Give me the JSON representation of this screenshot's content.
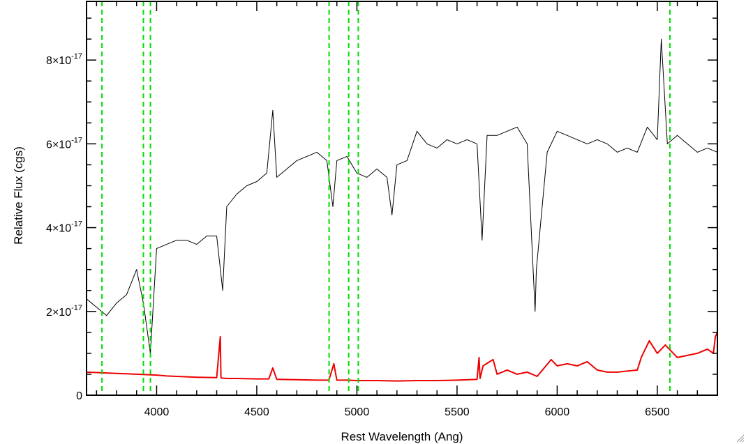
{
  "chart_data": {
    "type": "line",
    "title": "",
    "xlabel": "Rest Wavelength (Ang)",
    "ylabel": "Relative Flux (cgs)",
    "xlim": [
      3650,
      6800
    ],
    "ylim": [
      0,
      9.4e-17
    ],
    "xticks": [
      {
        "value": 4000,
        "label": "4000"
      },
      {
        "value": 4500,
        "label": "4500"
      },
      {
        "value": 5000,
        "label": "5000"
      },
      {
        "value": 5500,
        "label": "5500"
      },
      {
        "value": 6000,
        "label": "6000"
      },
      {
        "value": 6500,
        "label": "6500"
      }
    ],
    "yticks": [
      {
        "value": 0,
        "label": "0",
        "mantissa": "0",
        "exponent": ""
      },
      {
        "value": 2e-17,
        "label": "2×10⁻¹⁷",
        "mantissa": "2×10",
        "exponent": "-17"
      },
      {
        "value": 4e-17,
        "label": "4×10⁻¹⁷",
        "mantissa": "4×10",
        "exponent": "-17"
      },
      {
        "value": 6e-17,
        "label": "6×10⁻¹⁷",
        "mantissa": "6×10",
        "exponent": "-17"
      },
      {
        "value": 8e-17,
        "label": "8×10⁻¹⁷",
        "mantissa": "8×10",
        "exponent": "-17"
      }
    ],
    "grid": false,
    "legend": "none",
    "vlines": {
      "style": "dashed",
      "color": "#00dd00",
      "x": [
        3727,
        3934,
        3969,
        4861,
        4959,
        5007,
        6563
      ]
    },
    "series": [
      {
        "color": "#000000",
        "x": [
          3650,
          3700,
          3750,
          3800,
          3850,
          3900,
          3934,
          3969,
          4000,
          4050,
          4100,
          4150,
          4200,
          4250,
          4300,
          4330,
          4350,
          4400,
          4450,
          4500,
          4550,
          4580,
          4600,
          4650,
          4700,
          4750,
          4800,
          4850,
          4880,
          4900,
          4950,
          5000,
          5050,
          5100,
          5150,
          5175,
          5200,
          5250,
          5300,
          5350,
          5400,
          5450,
          5500,
          5550,
          5600,
          5625,
          5650,
          5700,
          5750,
          5800,
          5850,
          5890,
          5896,
          5950,
          6000,
          6050,
          6100,
          6150,
          6200,
          6250,
          6300,
          6350,
          6400,
          6450,
          6500,
          6520,
          6550,
          6600,
          6650,
          6700,
          6750,
          6800
        ],
        "y": [
          2.3e-17,
          2.1e-17,
          1.9e-17,
          2.2e-17,
          2.4e-17,
          3e-17,
          2.2e-17,
          1e-17,
          3.5e-17,
          3.6e-17,
          3.7e-17,
          3.7e-17,
          3.6e-17,
          3.8e-17,
          3.8e-17,
          2.5e-17,
          4.5e-17,
          4.8e-17,
          5e-17,
          5.1e-17,
          5.3e-17,
          6.8e-17,
          5.2e-17,
          5.4e-17,
          5.6e-17,
          5.7e-17,
          5.8e-17,
          5.6e-17,
          4.5e-17,
          5.6e-17,
          5.7e-17,
          5.3e-17,
          5.2e-17,
          5.4e-17,
          5.2e-17,
          4.3e-17,
          5.5e-17,
          5.6e-17,
          6.3e-17,
          6e-17,
          5.9e-17,
          6.1e-17,
          6e-17,
          6.1e-17,
          6e-17,
          3.7e-17,
          6.2e-17,
          6.2e-17,
          6.3e-17,
          6.4e-17,
          6e-17,
          2e-17,
          3e-17,
          5.8e-17,
          6.3e-17,
          6.2e-17,
          6.1e-17,
          6e-17,
          6.1e-17,
          6e-17,
          5.8e-17,
          5.9e-17,
          5.8e-17,
          6.4e-17,
          6.1e-17,
          8.5e-17,
          6e-17,
          6.2e-17,
          6e-17,
          5.8e-17,
          5.9e-17,
          5.8e-17
        ]
      },
      {
        "color": "#ee0000",
        "x": [
          3650,
          3700,
          3750,
          3800,
          3850,
          3900,
          3950,
          4000,
          4050,
          4100,
          4200,
          4300,
          4318,
          4321,
          4325,
          4350,
          4400,
          4500,
          4520,
          4560,
          4580,
          4600,
          4700,
          4800,
          4860,
          4885,
          4900,
          4950,
          5000,
          5050,
          5100,
          5200,
          5300,
          5400,
          5500,
          5600,
          5610,
          5615,
          5630,
          5680,
          5700,
          5750,
          5800,
          5850,
          5900,
          5970,
          6000,
          6050,
          6100,
          6150,
          6200,
          6250,
          6300,
          6400,
          6420,
          6460,
          6500,
          6540,
          6560,
          6600,
          6650,
          6700,
          6750,
          6780,
          6790,
          6800
        ],
        "y": [
          5.5e-18,
          5.4e-18,
          5.3e-18,
          5.2e-18,
          5.1e-18,
          5e-18,
          4.9e-18,
          4.8e-18,
          4.6e-18,
          4.5e-18,
          4.3e-18,
          4.2e-18,
          1.4e-17,
          4.2e-18,
          4.1e-18,
          4e-18,
          4e-18,
          3.9e-18,
          3.9e-18,
          3.9e-18,
          6.5e-18,
          3.8e-18,
          3.7e-18,
          3.6e-18,
          3.6e-18,
          7.5e-18,
          3.6e-18,
          3.6e-18,
          3.5e-18,
          3.5e-18,
          3.5e-18,
          3.4e-18,
          3.5e-18,
          3.5e-18,
          3.6e-18,
          3.8e-18,
          9e-18,
          4e-18,
          7e-18,
          8.5e-18,
          5e-18,
          6e-18,
          5e-18,
          5.5e-18,
          4.5e-18,
          8.5e-18,
          7e-18,
          7.5e-18,
          7e-18,
          8e-18,
          6e-18,
          5.5e-18,
          5.5e-18,
          6e-18,
          9e-18,
          1.3e-17,
          1e-17,
          1.2e-17,
          1.1e-17,
          9e-18,
          9.5e-18,
          1e-17,
          1.1e-17,
          1e-17,
          1.4e-17,
          1.5e-17
        ]
      }
    ]
  },
  "ui": {
    "resize_grip_icon": "resize-grip-icon"
  }
}
